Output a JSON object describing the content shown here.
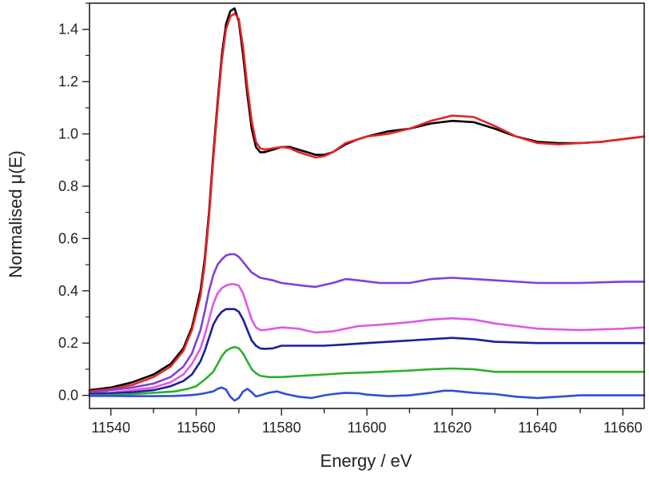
{
  "chart_data": {
    "type": "line",
    "title": "",
    "xlabel": "Energy / eV",
    "ylabel": "Normalised μ(E)",
    "xlim": [
      11535,
      11665
    ],
    "ylim": [
      -0.05,
      1.5
    ],
    "xticks": [
      11540,
      11560,
      11580,
      11600,
      11620,
      11640,
      11660
    ],
    "xtick_labels": [
      "11540",
      "11560",
      "11580",
      "11600",
      "11620",
      "11640",
      "11660"
    ],
    "yticks": [
      0.0,
      0.2,
      0.4,
      0.6,
      0.8,
      1.0,
      1.2,
      1.4
    ],
    "ytick_labels": [
      "0.0",
      "0.2",
      "0.4",
      "0.6",
      "0.8",
      "1.0",
      "1.2",
      "1.4"
    ],
    "grid": false,
    "legend": false,
    "series": [
      {
        "color": "#000000",
        "x": [
          11535,
          11540,
          11545,
          11550,
          11554,
          11557,
          11559,
          11561,
          11562,
          11563,
          11564,
          11565,
          11566,
          11567,
          11568,
          11569,
          11570,
          11571,
          11572,
          11573,
          11574,
          11575,
          11576,
          11578,
          11580,
          11582,
          11584,
          11586,
          11588,
          11590,
          11592,
          11595,
          11598,
          11600,
          11605,
          11610,
          11615,
          11620,
          11625,
          11630,
          11635,
          11640,
          11645,
          11650,
          11655,
          11660,
          11665
        ],
        "y": [
          0.02,
          0.03,
          0.05,
          0.08,
          0.12,
          0.18,
          0.26,
          0.4,
          0.52,
          0.7,
          0.92,
          1.12,
          1.3,
          1.42,
          1.47,
          1.48,
          1.43,
          1.3,
          1.15,
          1.02,
          0.95,
          0.93,
          0.93,
          0.94,
          0.95,
          0.95,
          0.94,
          0.93,
          0.92,
          0.92,
          0.93,
          0.96,
          0.98,
          0.99,
          1.01,
          1.02,
          1.04,
          1.05,
          1.045,
          1.02,
          0.99,
          0.97,
          0.965,
          0.965,
          0.97,
          0.98,
          0.99
        ]
      },
      {
        "color": "#e8232a",
        "x": [
          11535,
          11540,
          11545,
          11550,
          11554,
          11557,
          11559,
          11561,
          11562,
          11563,
          11564,
          11565,
          11566,
          11567,
          11568,
          11569,
          11570,
          11571,
          11572,
          11573,
          11574,
          11575,
          11576,
          11578,
          11580,
          11582,
          11584,
          11586,
          11588,
          11590,
          11592,
          11595,
          11598,
          11600,
          11605,
          11610,
          11615,
          11620,
          11625,
          11630,
          11635,
          11640,
          11645,
          11650,
          11655,
          11660,
          11665
        ],
        "y": [
          0.015,
          0.025,
          0.04,
          0.07,
          0.11,
          0.17,
          0.25,
          0.38,
          0.5,
          0.68,
          0.9,
          1.1,
          1.28,
          1.4,
          1.45,
          1.46,
          1.44,
          1.33,
          1.18,
          1.05,
          0.97,
          0.945,
          0.94,
          0.945,
          0.95,
          0.945,
          0.93,
          0.92,
          0.91,
          0.915,
          0.93,
          0.965,
          0.98,
          0.99,
          1.0,
          1.02,
          1.05,
          1.07,
          1.065,
          1.03,
          0.99,
          0.965,
          0.96,
          0.965,
          0.97,
          0.98,
          0.99
        ]
      },
      {
        "color": "#7f3fdc",
        "x": [
          11535,
          11540,
          11545,
          11550,
          11554,
          11557,
          11559,
          11561,
          11562,
          11563,
          11564,
          11565,
          11566,
          11567,
          11568,
          11569,
          11570,
          11571,
          11572,
          11573,
          11575,
          11578,
          11580,
          11585,
          11588,
          11592,
          11595,
          11598,
          11603,
          11610,
          11615,
          11620,
          11625,
          11630,
          11640,
          11650,
          11660,
          11665
        ],
        "y": [
          0.01,
          0.02,
          0.03,
          0.045,
          0.07,
          0.11,
          0.16,
          0.25,
          0.32,
          0.4,
          0.46,
          0.5,
          0.52,
          0.535,
          0.54,
          0.54,
          0.53,
          0.51,
          0.49,
          0.47,
          0.45,
          0.44,
          0.43,
          0.42,
          0.415,
          0.43,
          0.445,
          0.44,
          0.43,
          0.43,
          0.445,
          0.45,
          0.445,
          0.44,
          0.43,
          0.43,
          0.435,
          0.435
        ]
      },
      {
        "color": "#e157e6",
        "x": [
          11535,
          11540,
          11545,
          11550,
          11554,
          11557,
          11559,
          11561,
          11562,
          11563,
          11564,
          11565,
          11566,
          11567,
          11568,
          11569,
          11570,
          11571,
          11572,
          11573,
          11574,
          11575,
          11576,
          11578,
          11580,
          11584,
          11588,
          11592,
          11595,
          11598,
          11603,
          11610,
          11615,
          11620,
          11625,
          11630,
          11640,
          11650,
          11660,
          11665
        ],
        "y": [
          0.005,
          0.01,
          0.02,
          0.03,
          0.05,
          0.08,
          0.12,
          0.18,
          0.23,
          0.29,
          0.35,
          0.39,
          0.41,
          0.42,
          0.425,
          0.425,
          0.42,
          0.39,
          0.34,
          0.29,
          0.26,
          0.25,
          0.25,
          0.255,
          0.26,
          0.255,
          0.24,
          0.245,
          0.255,
          0.265,
          0.27,
          0.28,
          0.29,
          0.295,
          0.29,
          0.275,
          0.255,
          0.25,
          0.255,
          0.26
        ]
      },
      {
        "color": "#1b1f9e",
        "x": [
          11535,
          11540,
          11545,
          11550,
          11554,
          11557,
          11559,
          11561,
          11562,
          11563,
          11564,
          11565,
          11566,
          11567,
          11568,
          11569,
          11570,
          11571,
          11572,
          11573,
          11574,
          11575,
          11576,
          11578,
          11580,
          11585,
          11590,
          11595,
          11600,
          11610,
          11615,
          11620,
          11625,
          11630,
          11640,
          11650,
          11660,
          11665
        ],
        "y": [
          0.005,
          0.008,
          0.012,
          0.02,
          0.035,
          0.055,
          0.08,
          0.13,
          0.17,
          0.22,
          0.27,
          0.3,
          0.32,
          0.33,
          0.33,
          0.33,
          0.32,
          0.29,
          0.25,
          0.21,
          0.19,
          0.18,
          0.178,
          0.18,
          0.19,
          0.19,
          0.19,
          0.195,
          0.2,
          0.21,
          0.215,
          0.22,
          0.215,
          0.205,
          0.2,
          0.2,
          0.2,
          0.2
        ]
      },
      {
        "color": "#2bb02b",
        "x": [
          11535,
          11540,
          11545,
          11550,
          11555,
          11558,
          11560,
          11562,
          11564,
          11565,
          11566,
          11567,
          11568,
          11569,
          11570,
          11571,
          11572,
          11573,
          11574,
          11575,
          11577,
          11580,
          11585,
          11590,
          11595,
          11600,
          11610,
          11615,
          11620,
          11625,
          11630,
          11640,
          11650,
          11660,
          11665
        ],
        "y": [
          0.0,
          0.002,
          0.005,
          0.01,
          0.015,
          0.025,
          0.035,
          0.06,
          0.09,
          0.12,
          0.15,
          0.17,
          0.18,
          0.185,
          0.18,
          0.16,
          0.13,
          0.1,
          0.085,
          0.075,
          0.07,
          0.07,
          0.075,
          0.08,
          0.085,
          0.088,
          0.095,
          0.1,
          0.103,
          0.1,
          0.09,
          0.09,
          0.09,
          0.09,
          0.09
        ]
      },
      {
        "color": "#2f4fd8",
        "x": [
          11535,
          11540,
          11545,
          11550,
          11555,
          11558,
          11560,
          11562,
          11564,
          11565,
          11566,
          11567,
          11568,
          11569,
          11570,
          11571,
          11572,
          11573,
          11574,
          11575,
          11577,
          11579,
          11581,
          11584,
          11587,
          11590,
          11592,
          11595,
          11598,
          11600,
          11605,
          11610,
          11615,
          11618,
          11620,
          11625,
          11630,
          11635,
          11640,
          11645,
          11650,
          11655,
          11660,
          11665
        ],
        "y": [
          -0.002,
          -0.002,
          -0.003,
          -0.003,
          -0.002,
          0.0,
          0.003,
          0.008,
          0.015,
          0.025,
          0.03,
          0.022,
          -0.005,
          -0.02,
          -0.01,
          0.015,
          0.025,
          0.012,
          -0.004,
          0.0,
          0.01,
          0.015,
          0.005,
          -0.005,
          -0.01,
          0.0,
          0.005,
          0.01,
          0.008,
          0.003,
          -0.003,
          0.0,
          0.01,
          0.018,
          0.018,
          0.01,
          0.005,
          -0.005,
          -0.01,
          -0.005,
          0.0,
          0.0,
          0.0,
          0.0
        ]
      }
    ]
  }
}
